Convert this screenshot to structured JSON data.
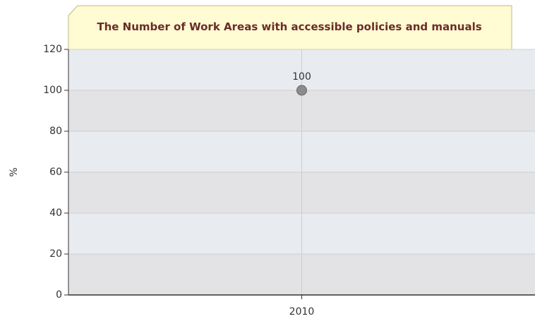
{
  "chart_data": {
    "type": "line",
    "title": "The Number of Work Areas with accessible policies and manuals",
    "y_label": "%",
    "categories": [
      "2010"
    ],
    "series": [
      {
        "name": "%",
        "color": "#8c8c8c",
        "values": [
          100
        ]
      }
    ],
    "ylim": [
      0,
      120
    ],
    "yticks": [
      0,
      20,
      40,
      60,
      80,
      100,
      120
    ],
    "grid": true
  }
}
